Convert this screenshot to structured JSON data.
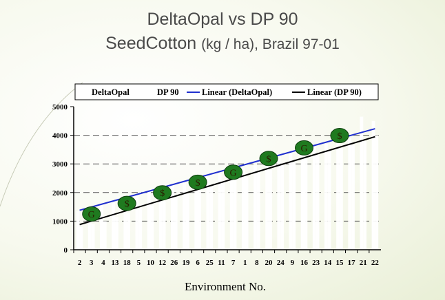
{
  "title": {
    "line1": "DeltaOpal vs DP 90",
    "line2_main": "SeedCotton",
    "line2_unit": "(kg / ha)",
    "line2_rest": ", Brazil 97-01"
  },
  "colors": {
    "deltaopal_bar": "#ffffff",
    "dp90_bar": "#ffffff",
    "linear_deltaopal": "#1f2fcf",
    "linear_dp90": "#000000",
    "marker_fill": "#1f7a1f"
  },
  "chart_data": {
    "type": "bar",
    "xlabel": "Environment No.",
    "ylabel": "",
    "ylim": [
      0,
      5000
    ],
    "yticks": [
      0,
      1000,
      2000,
      3000,
      4000,
      5000
    ],
    "grid": true,
    "legend_position": "top",
    "categories": [
      "2",
      "3",
      "4",
      "13",
      "18",
      "5",
      "10",
      "12",
      "26",
      "19",
      "6",
      "25",
      "11",
      "7",
      "1",
      "8",
      "20",
      "24",
      "9",
      "16",
      "23",
      "14",
      "15",
      "17",
      "21",
      "22"
    ],
    "series": [
      {
        "name": "DeltaOpal",
        "values": [
          1350,
          1400,
          1550,
          1650,
          1750,
          1900,
          2050,
          2150,
          2250,
          2350,
          2500,
          2550,
          2650,
          2800,
          2850,
          2950,
          3100,
          3300,
          3400,
          3500,
          3600,
          3700,
          3800,
          3900,
          4650,
          4500
        ]
      },
      {
        "name": "DP 90",
        "values": [
          800,
          900,
          1000,
          1150,
          1300,
          1450,
          1550,
          1700,
          1850,
          1950,
          2100,
          2200,
          2350,
          2450,
          2550,
          2700,
          2800,
          2950,
          3050,
          3200,
          3300,
          3450,
          3550,
          3650,
          3800,
          4000
        ]
      },
      {
        "name": "Linear (DeltaOpal)",
        "start": 1380,
        "end": 4230
      },
      {
        "name": "Linear (DP 90)",
        "start": 880,
        "end": 3950
      }
    ],
    "markers": [
      {
        "label": "G",
        "x_index": 1,
        "y": 1250
      },
      {
        "label": "$",
        "x_index": 4,
        "y": 1620
      },
      {
        "label": "$",
        "x_index": 7,
        "y": 1990
      },
      {
        "label": "$",
        "x_index": 10,
        "y": 2360
      },
      {
        "label": "G",
        "x_index": 13,
        "y": 2710
      },
      {
        "label": "$",
        "x_index": 16,
        "y": 3190
      },
      {
        "label": "G",
        "x_index": 19,
        "y": 3560
      },
      {
        "label": "$",
        "x_index": 22,
        "y": 3990
      }
    ]
  }
}
